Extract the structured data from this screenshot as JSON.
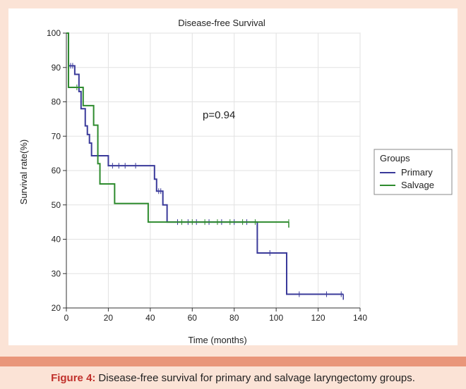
{
  "chart_data": {
    "type": "line",
    "step": true,
    "title": "Disease-free Survival",
    "xlabel": "Time (months)",
    "ylabel": "Survival rate(%)",
    "xlim": [
      0,
      140
    ],
    "ylim": [
      20,
      100
    ],
    "xticks": [
      0,
      20,
      40,
      60,
      80,
      100,
      120,
      140
    ],
    "yticks": [
      20,
      30,
      40,
      50,
      60,
      70,
      80,
      90,
      100
    ],
    "grid": true,
    "annotation": "p=0.94",
    "legend": {
      "title": "Groups",
      "position": "right"
    },
    "series": [
      {
        "name": "Primary",
        "color": "#3a3a9a",
        "steps": [
          [
            0,
            100
          ],
          [
            1,
            100
          ],
          [
            1,
            90.5
          ],
          [
            4,
            90.5
          ],
          [
            4,
            88
          ],
          [
            6,
            88
          ],
          [
            6,
            83
          ],
          [
            7,
            83
          ],
          [
            7,
            78
          ],
          [
            9,
            78
          ],
          [
            9,
            73
          ],
          [
            10,
            73
          ],
          [
            10,
            70.5
          ],
          [
            11,
            70.5
          ],
          [
            11,
            68
          ],
          [
            12,
            68
          ],
          [
            12,
            64.3
          ],
          [
            20,
            64.3
          ],
          [
            20,
            61.4
          ],
          [
            42,
            61.4
          ],
          [
            42,
            57.5
          ],
          [
            43,
            57.5
          ],
          [
            43,
            54
          ],
          [
            46,
            54
          ],
          [
            46,
            50
          ],
          [
            48,
            50
          ],
          [
            48,
            45
          ],
          [
            91,
            45
          ],
          [
            91,
            36
          ],
          [
            105,
            36
          ],
          [
            105,
            24
          ],
          [
            132,
            24
          ]
        ],
        "censored": [
          [
            2,
            90.5
          ],
          [
            3,
            90.5
          ],
          [
            22,
            61.4
          ],
          [
            25,
            61.4
          ],
          [
            28,
            61.4
          ],
          [
            33,
            61.4
          ],
          [
            44,
            54
          ],
          [
            45,
            54
          ],
          [
            53,
            45
          ],
          [
            58,
            45
          ],
          [
            62,
            45
          ],
          [
            68,
            45
          ],
          [
            74,
            45
          ],
          [
            80,
            45
          ],
          [
            86,
            45
          ],
          [
            97,
            36
          ],
          [
            111,
            24
          ],
          [
            124,
            24
          ],
          [
            131,
            24
          ]
        ],
        "end_tick": [
          132,
          23
        ]
      },
      {
        "name": "Salvage",
        "color": "#2e8b2e",
        "steps": [
          [
            0,
            100
          ],
          [
            1,
            100
          ],
          [
            1,
            84.2
          ],
          [
            8,
            84.2
          ],
          [
            8,
            78.9
          ],
          [
            13,
            78.9
          ],
          [
            13,
            73.2
          ],
          [
            15,
            73.2
          ],
          [
            15,
            62
          ],
          [
            16,
            62
          ],
          [
            16,
            56.1
          ],
          [
            23,
            56.1
          ],
          [
            23,
            50.4
          ],
          [
            39,
            50.4
          ],
          [
            39,
            45
          ],
          [
            106,
            45
          ]
        ],
        "censored": [
          [
            5,
            84.2
          ],
          [
            55,
            45
          ],
          [
            60,
            45
          ],
          [
            66,
            45
          ],
          [
            72,
            45
          ],
          [
            78,
            45
          ],
          [
            84,
            45
          ],
          [
            90,
            45
          ],
          [
            106,
            45
          ]
        ],
        "end_tick": [
          106,
          44
        ]
      }
    ]
  },
  "caption": {
    "label": "Figure 4:",
    "text": "Disease-free survival for primary and salvage laryngectomy groups."
  }
}
